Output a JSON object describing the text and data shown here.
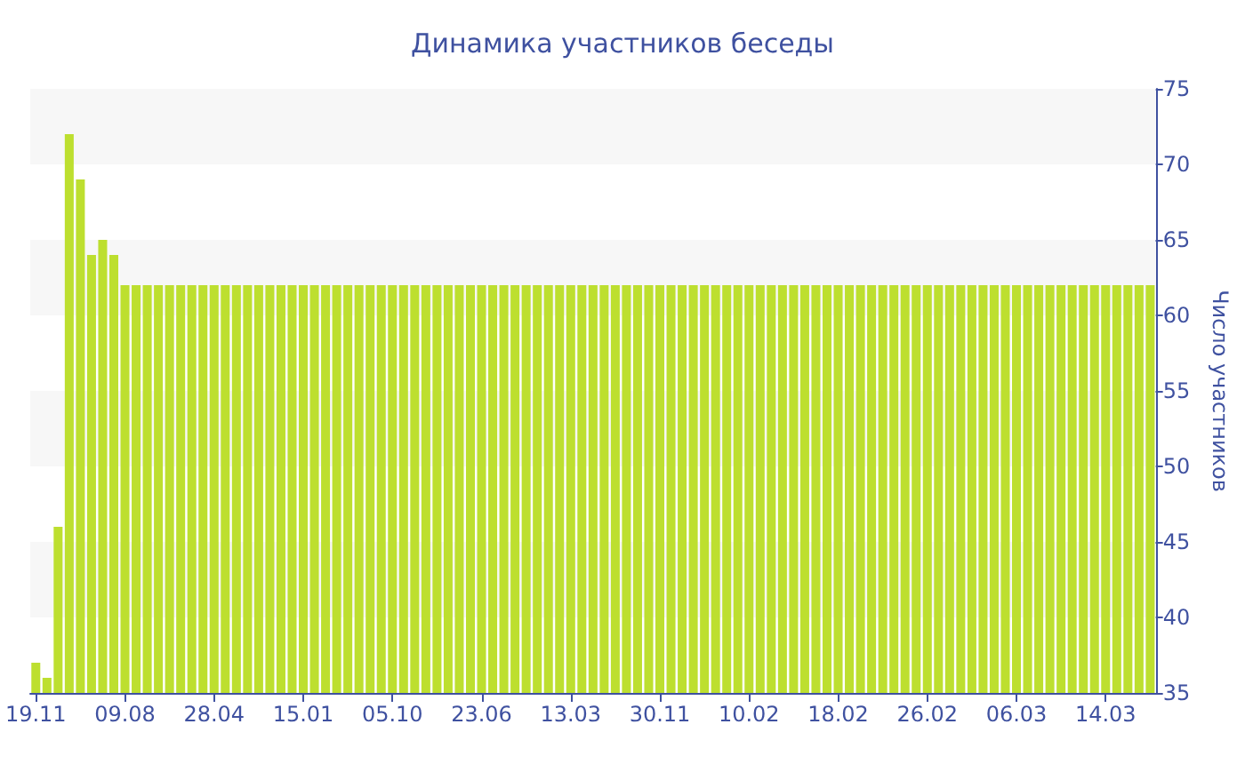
{
  "chart_data": {
    "type": "bar",
    "title": "Динамика участников беседы",
    "ylabel": "Число участников",
    "categories": [
      "19.11",
      null,
      null,
      null,
      null,
      null,
      null,
      null,
      "09.08",
      null,
      null,
      null,
      null,
      null,
      null,
      null,
      "28.04",
      null,
      null,
      null,
      null,
      null,
      null,
      null,
      "15.01",
      null,
      null,
      null,
      null,
      null,
      null,
      null,
      "05.10",
      null,
      null,
      null,
      null,
      null,
      null,
      null,
      "23.06",
      null,
      null,
      null,
      null,
      null,
      null,
      null,
      "13.03",
      null,
      null,
      null,
      null,
      null,
      null,
      null,
      "30.11",
      null,
      null,
      null,
      null,
      null,
      null,
      null,
      "10.02",
      null,
      null,
      null,
      null,
      null,
      null,
      null,
      "18.02",
      null,
      null,
      null,
      null,
      null,
      null,
      null,
      "26.02",
      null,
      null,
      null,
      null,
      null,
      null,
      null,
      "06.03",
      null,
      null,
      null,
      null,
      null,
      null,
      null,
      "14.03",
      null,
      null,
      null,
      null
    ],
    "values": [
      37,
      36,
      46,
      72,
      69,
      64,
      65,
      64,
      62,
      62,
      62,
      62,
      62,
      62,
      62,
      62,
      62,
      62,
      62,
      62,
      62,
      62,
      62,
      62,
      62,
      62,
      62,
      62,
      62,
      62,
      62,
      62,
      62,
      62,
      62,
      62,
      62,
      62,
      62,
      62,
      62,
      62,
      62,
      62,
      62,
      62,
      62,
      62,
      62,
      62,
      62,
      62,
      62,
      62,
      62,
      62,
      62,
      62,
      62,
      62,
      62,
      62,
      62,
      62,
      62,
      62,
      62,
      62,
      62,
      62,
      62,
      62,
      62,
      62,
      62,
      62,
      62,
      62,
      62,
      62,
      62,
      62,
      62,
      62,
      62,
      62,
      62,
      62,
      62,
      62,
      62,
      62,
      62,
      62,
      62,
      62,
      62,
      62,
      62,
      62,
      62
    ],
    "color": "#bddf2f",
    "ylim": [
      35,
      75
    ],
    "yticks": [
      35,
      40,
      45,
      50,
      55,
      60,
      65,
      70,
      75
    ]
  }
}
